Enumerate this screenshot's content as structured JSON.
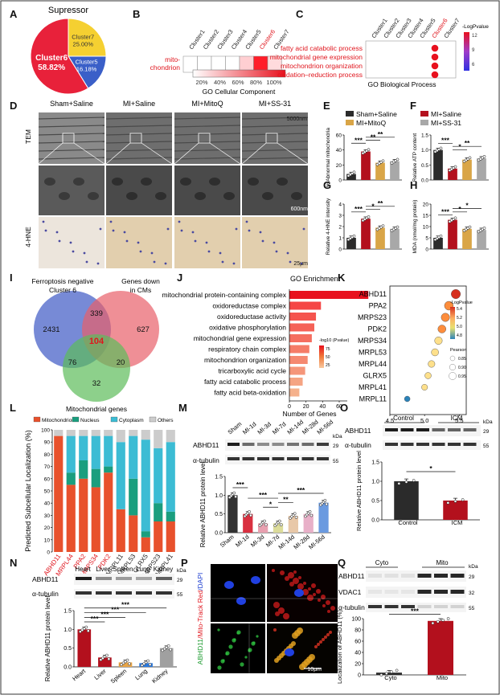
{
  "panels": {
    "A": "A",
    "B": "B",
    "C": "C",
    "D": "D",
    "E": "E",
    "F": "F",
    "G": "G",
    "H": "H",
    "I": "I",
    "J": "J",
    "K": "K",
    "L": "L",
    "M": "M",
    "N": "N",
    "O": "O",
    "P": "P",
    "Q": "Q"
  },
  "a": {
    "title": "Supressor",
    "slices": [
      {
        "label": "Cluster6",
        "pct": "58.82%",
        "value": 58.82,
        "color": "#e8213a"
      },
      {
        "label": "Cluster5",
        "pct": "16.18%",
        "value": 16.18,
        "color": "#3a5fc8"
      },
      {
        "label": "Cluster7",
        "pct": "25.00%",
        "value": 25.0,
        "color": "#f5d031"
      }
    ]
  },
  "b": {
    "clusters": [
      "Cluster1",
      "Cluster2",
      "Cluster3",
      "Cluster4",
      "Cluster5",
      "Cluster6",
      "Cluster7"
    ],
    "row_label": "mito-chondrion",
    "row_label_1": "mito-",
    "row_label_2": "chondrion",
    "cells": [
      0,
      0,
      0,
      0,
      0.2,
      0.95,
      0.15
    ],
    "scale_ticks": [
      "20%",
      "40%",
      "60%",
      "80%",
      "100%"
    ],
    "xlabel": "GO Cellular Component"
  },
  "c": {
    "clusters": [
      "Cluster1",
      "Cluster2",
      "Cluster3",
      "Cluster4",
      "Cluster5",
      "Cluster6",
      "Cluster7"
    ],
    "terms": [
      "fatty acid catabolic process",
      "mitochondrial gene expression",
      "mitochondrion organization",
      "oxidation–reduction process"
    ],
    "legend_title": "-LogPvalue",
    "legend_ticks": [
      "12",
      "9",
      "6"
    ],
    "xlabel": "GO Biological Process"
  },
  "d": {
    "cols": [
      "Sham+Saline",
      "MI+Saline",
      "MI+MitoQ",
      "MI+SS-31"
    ],
    "rows": [
      "TEM",
      "",
      "4-HNE"
    ],
    "scale1": "5000nm",
    "scale2": "600nm",
    "scale3": "25μm"
  },
  "legend_ef": [
    {
      "label": "Sham+Saline",
      "color": "#2b2b2b"
    },
    {
      "label": "MI+MitoQ",
      "color": "#d9a547"
    },
    {
      "label": "MI+Saline",
      "color": "#b3101d"
    },
    {
      "label": "MI+SS-31",
      "color": "#a8a8a8"
    }
  ],
  "chart_data": [
    {
      "panel": "E",
      "type": "bar",
      "categories": [
        "Sham+Saline",
        "MI+Saline",
        "MI+MitoQ",
        "MI+SS-31"
      ],
      "values": [
        8,
        38,
        23,
        25
      ],
      "ylabel": "% Abnormal mitochondria",
      "ylim": [
        0,
        60
      ],
      "yticks": [
        "0",
        "20",
        "40",
        "60"
      ],
      "sig": [
        "***",
        "**",
        "**"
      ]
    },
    {
      "panel": "F",
      "type": "bar",
      "categories": [
        "Sham+Saline",
        "MI+Saline",
        "MI+MitoQ",
        "MI+SS-31"
      ],
      "values": [
        1.0,
        0.38,
        0.68,
        0.72
      ],
      "ylabel": "Relative ATP content",
      "ylim": [
        0,
        1.5
      ],
      "yticks": [
        "0.0",
        "0.5",
        "1.0",
        "1.5"
      ],
      "sig": [
        "***",
        "*",
        "**"
      ]
    },
    {
      "panel": "G",
      "type": "bar",
      "categories": [
        "Sham+Saline",
        "MI+Saline",
        "MI+MitoQ",
        "MI+SS-31"
      ],
      "values": [
        1.0,
        2.7,
        1.9,
        1.8
      ],
      "ylabel": "Relative 4-HNE intensity",
      "ylim": [
        0,
        4
      ],
      "yticks": [
        "0",
        "1",
        "2",
        "3",
        "4"
      ],
      "sig": [
        "***",
        "*",
        "**"
      ]
    },
    {
      "panel": "H",
      "type": "bar",
      "categories": [
        "Sham+Saline",
        "MI+Saline",
        "MI+MitoQ",
        "MI+SS-31"
      ],
      "values": [
        5,
        13,
        9,
        8.5
      ],
      "ylabel": "MDA (nmol/mg protein)",
      "ylim": [
        0,
        20
      ],
      "yticks": [
        "0",
        "5",
        "10",
        "15",
        "20"
      ],
      "sig": [
        "***",
        "*",
        "*"
      ]
    },
    {
      "panel": "J",
      "type": "bar",
      "title": "GO Enrichment",
      "categories": [
        "mitochondrial protein-containing complex",
        "oxidoreductase complex",
        "oxidoreductase activity",
        "oxidative phosphorylation",
        "mitochondrial gene expression",
        "respiratory chain complex",
        "mitochondrion organization",
        "tricarboxylic acid cycle",
        "fatty acid catabolic process",
        "fatty acid beta-oxidation"
      ],
      "values": [
        95,
        38,
        32,
        30,
        27,
        24,
        22,
        19,
        16,
        12
      ],
      "xlabel": "Number of Genes",
      "xticks": [
        "0",
        "20",
        "40",
        "60"
      ],
      "legend_title": "-log10 (Pvalue)",
      "legend_ticks": [
        "75",
        "50",
        "25"
      ]
    },
    {
      "panel": "K",
      "type": "scatter",
      "categories": [
        "ABHD11",
        "PPA2",
        "MRPS23",
        "PDK2",
        "MRPS34",
        "MRPL53",
        "MRPL44",
        "GLRX5",
        "MRPL41",
        "MRPL11"
      ],
      "x": [
        5.45,
        5.35,
        5.3,
        5.25,
        5.2,
        5.15,
        5.1,
        5.05,
        5.0,
        4.75
      ],
      "xlabel": "-LogPvalue",
      "xticks": [
        "4.5",
        "5.0",
        "5.5"
      ],
      "legend_title": "-LogPvalue",
      "legend_ticks": [
        "5.4",
        "5.2",
        "5.0",
        "4.8"
      ],
      "size_title": "Pearson",
      "size_ticks": [
        "0.85",
        "0.90",
        "0.95"
      ]
    },
    {
      "panel": "L",
      "type": "bar",
      "stacked": true,
      "categories": [
        "ABHD11",
        "MRPL44",
        "PPA2",
        "MRPS34",
        "PDK2",
        "MRPL11",
        "MRPL53",
        "GLRX5",
        "MRPS23",
        "MRPL41"
      ],
      "category_colors": [
        "#e0151d",
        "#e0151d",
        "#e0151d",
        "#e0151d",
        "#e0151d",
        "#222",
        "#222",
        "#222",
        "#222",
        "#222"
      ],
      "series": [
        {
          "name": "Mitochondrion",
          "values": [
            95,
            55,
            60,
            53,
            65,
            35,
            30,
            12,
            25,
            25
          ],
          "color": "#e8512c"
        },
        {
          "name": "Nucleus",
          "values": [
            0,
            10,
            15,
            15,
            5,
            0,
            30,
            5,
            15,
            8
          ],
          "color": "#1a9e7e"
        },
        {
          "name": "Cytoplasm",
          "values": [
            0,
            30,
            20,
            27,
            25,
            55,
            35,
            75,
            45,
            57
          ],
          "color": "#3cbcd4"
        },
        {
          "name": "Others",
          "values": [
            5,
            5,
            5,
            5,
            5,
            10,
            5,
            8,
            15,
            10
          ],
          "color": "#cccccc"
        }
      ],
      "ylabel": "Predicted Subcellular Localization (%)",
      "ylim": [
        0,
        100
      ],
      "yticks": [
        "0",
        "10",
        "20",
        "30",
        "40",
        "50",
        "60",
        "70",
        "80",
        "90",
        "100"
      ]
    },
    {
      "panel": "M",
      "type": "bar",
      "categories": [
        "Sham",
        "MI-1d",
        "MI-3d",
        "MI-7d",
        "MI-14d",
        "MI-28d",
        "MI-56d"
      ],
      "values": [
        1.0,
        0.5,
        0.25,
        0.25,
        0.45,
        0.5,
        0.8
      ],
      "colors": [
        "#333",
        "#d93040",
        "#e8a0b0",
        "#dcdc9a",
        "#e8c8a8",
        "#e8b0c8",
        "#6a9ae0"
      ],
      "ylabel": "Relative ABHD11 protein level",
      "ylim": [
        0,
        1.5
      ],
      "yticks": [
        "0.0",
        "0.5",
        "1.0",
        "1.5"
      ],
      "sig": [
        "***",
        "***",
        "*",
        "**",
        "***"
      ]
    },
    {
      "panel": "N",
      "type": "bar",
      "categories": [
        "Heart",
        "Liver",
        "Spleen",
        "Lung",
        "Kidney"
      ],
      "values": [
        1.0,
        0.25,
        0.12,
        0.1,
        0.5
      ],
      "colors": [
        "#b3101d",
        "#b3101d",
        "#e8a547",
        "#2a7ae0",
        "#a0a0a0"
      ],
      "ylabel": "Relative ABHD11 protein level",
      "ylim": [
        0,
        1.5
      ],
      "yticks": [
        "0.0",
        "0.5",
        "1.0",
        "1.5"
      ],
      "sig": [
        "***",
        "***",
        "***",
        "***"
      ]
    },
    {
      "panel": "O",
      "type": "bar",
      "categories": [
        "Control",
        "ICM"
      ],
      "values": [
        1.0,
        0.5
      ],
      "colors": [
        "#2b2b2b",
        "#b3101d"
      ],
      "ylabel": "Relative ABHD11 protein level",
      "ylim": [
        0,
        1.5
      ],
      "yticks": [
        "0.0",
        "0.5",
        "1.0",
        "1.5"
      ],
      "sig": [
        "*"
      ]
    },
    {
      "panel": "Q",
      "type": "bar",
      "categories": [
        "Cyto",
        "Mito"
      ],
      "values": [
        4,
        96
      ],
      "colors": [
        "#2b2b2b",
        "#b3101d"
      ],
      "ylabel": "Localization of ABHD11 (%)",
      "ylim": [
        0,
        100
      ],
      "yticks": [
        "0",
        "20",
        "40",
        "60",
        "80",
        "100"
      ],
      "sig": [
        "***"
      ]
    }
  ],
  "i": {
    "circles": [
      "Ferroptosis negative Cluster 6",
      "Genes down in CMs",
      "Mitochondrial genes"
    ],
    "label_a1": "Ferroptosis negative",
    "label_a2": "Cluster 6",
    "label_b1": "Genes down",
    "label_b2": "in CMs",
    "label_c": "Mitochondrial genes",
    "n_a": "2431",
    "n_ab": "339",
    "n_b": "627",
    "n_abc": "104",
    "n_ac": "76",
    "n_bc": "20",
    "n_c": "32"
  },
  "blots": {
    "m_lanes": [
      "Sham",
      "MI-1d",
      "MI-3d",
      "MI-7d",
      "MI-14d",
      "MI-28d",
      "MI-56d"
    ],
    "abhd11": "ABHD11",
    "tubulin": "α-tubulin",
    "vdac1": "VDAC1",
    "kda": "kDa",
    "k29": "29",
    "k55": "55",
    "k32": "32",
    "n_lanes": [
      "Heart",
      "Liver",
      "Spleen",
      "Lung",
      "Kidney"
    ],
    "o_lanes": [
      "Control",
      "ICM"
    ],
    "q_lanes": [
      "Cyto",
      "Mito"
    ]
  },
  "p": {
    "ylabel_green": "ABHD11",
    "ylabel_red": "/Mito-Track Red",
    "ylabel_blue": "/DAPI",
    "scale": "10μm"
  }
}
